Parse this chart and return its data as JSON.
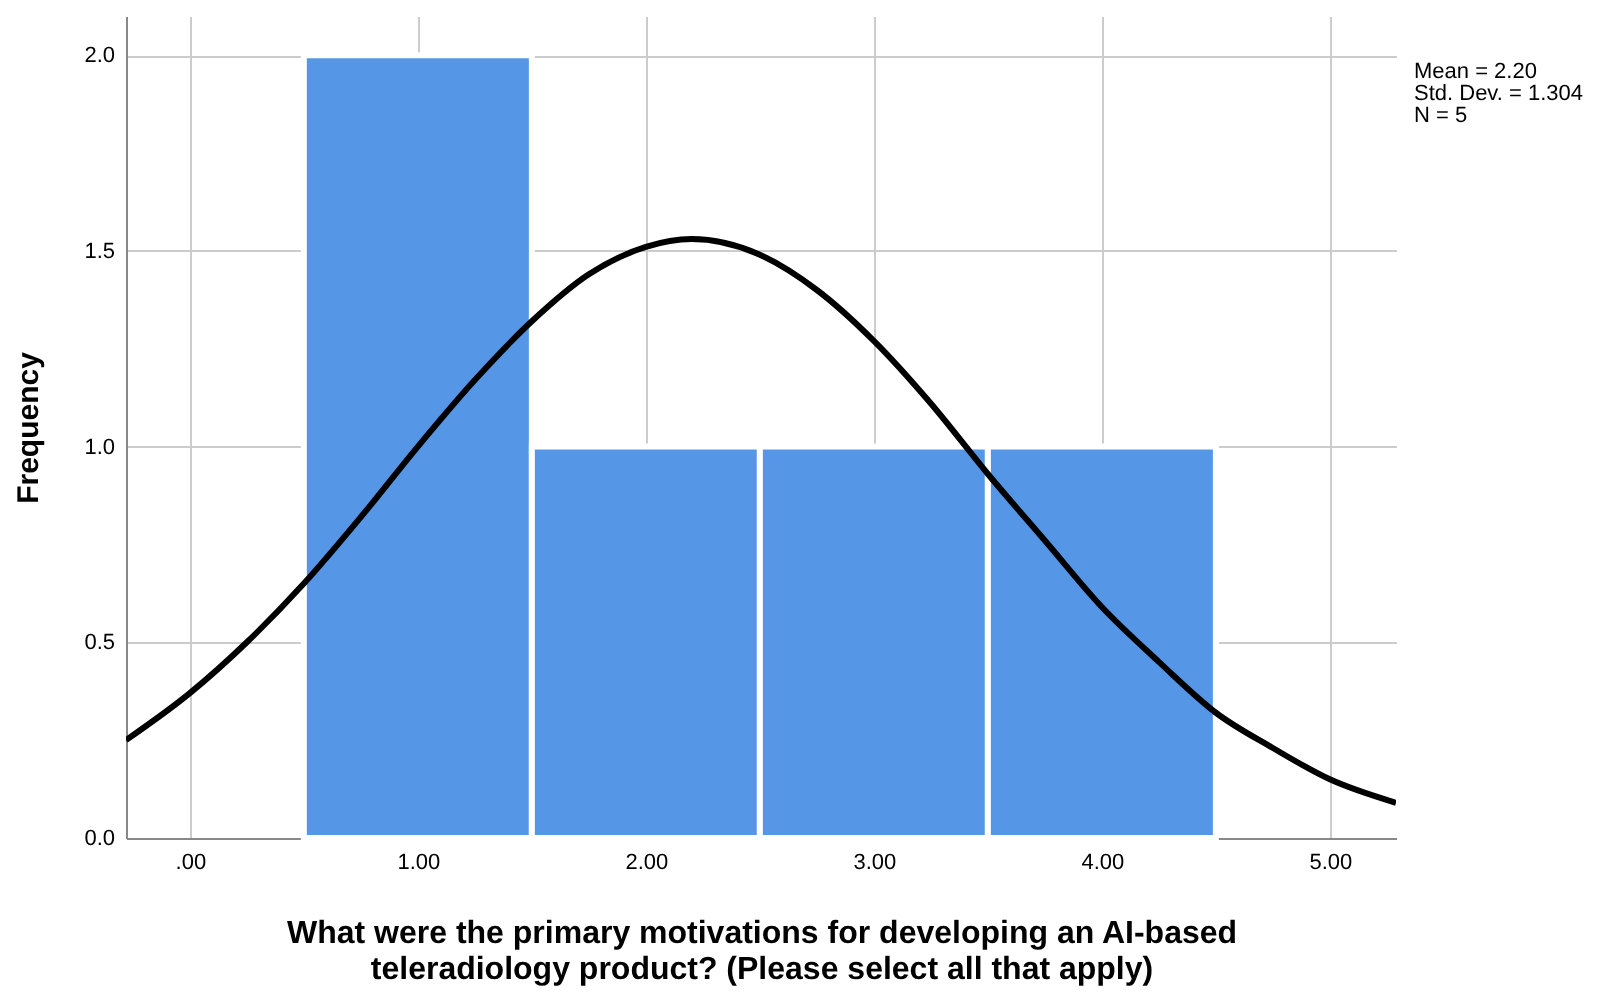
{
  "chart_data": {
    "type": "histogram",
    "xlabel": "What were the primary motivations for developing an AI-based\nteleradiology product? (Please select all that apply)",
    "ylabel": "Frequency",
    "bins": [
      0.5,
      1.5,
      2.5,
      3.5,
      4.5
    ],
    "values": [
      2,
      1,
      1,
      1
    ],
    "color": "#5596e6",
    "series": [
      {
        "type": "line",
        "color": "#000000",
        "x": [
          -0.28,
          0,
          0.25,
          0.5,
          0.75,
          1,
          1.25,
          1.5,
          1.75,
          2,
          2.2,
          2.5,
          2.75,
          3,
          3.25,
          3.5,
          3.75,
          4,
          4.25,
          4.5,
          4.75,
          5,
          5.29
        ],
        "values": [
          0.25,
          0.37,
          0.5,
          0.65,
          0.82,
          1.0,
          1.17,
          1.32,
          1.44,
          1.51,
          1.53,
          1.49,
          1.4,
          1.27,
          1.11,
          0.93,
          0.76,
          0.59,
          0.45,
          0.32,
          0.23,
          0.15,
          0.09
        ]
      }
    ],
    "xlim": [
      -0.28,
      5.29
    ],
    "ylim": [
      0,
      2.1
    ],
    "xticks": [
      {
        "value": 0,
        "label": ".00"
      },
      {
        "value": 1,
        "label": "1.00"
      },
      {
        "value": 2,
        "label": "2.00"
      },
      {
        "value": 3,
        "label": "3.00"
      },
      {
        "value": 4,
        "label": "4.00"
      },
      {
        "value": 5,
        "label": "5.00"
      }
    ],
    "yticks": [
      {
        "value": 0,
        "label": "0.0"
      },
      {
        "value": 0.5,
        "label": "0.5"
      },
      {
        "value": 1,
        "label": "1.0"
      },
      {
        "value": 1.5,
        "label": "1.5"
      },
      {
        "value": 2,
        "label": "2.0"
      }
    ],
    "grid": true,
    "marker": "none",
    "line_style": "solid",
    "annotations": [
      "Mean = 2.20",
      "Std. Dev. = 1.304",
      "N = 5"
    ]
  }
}
